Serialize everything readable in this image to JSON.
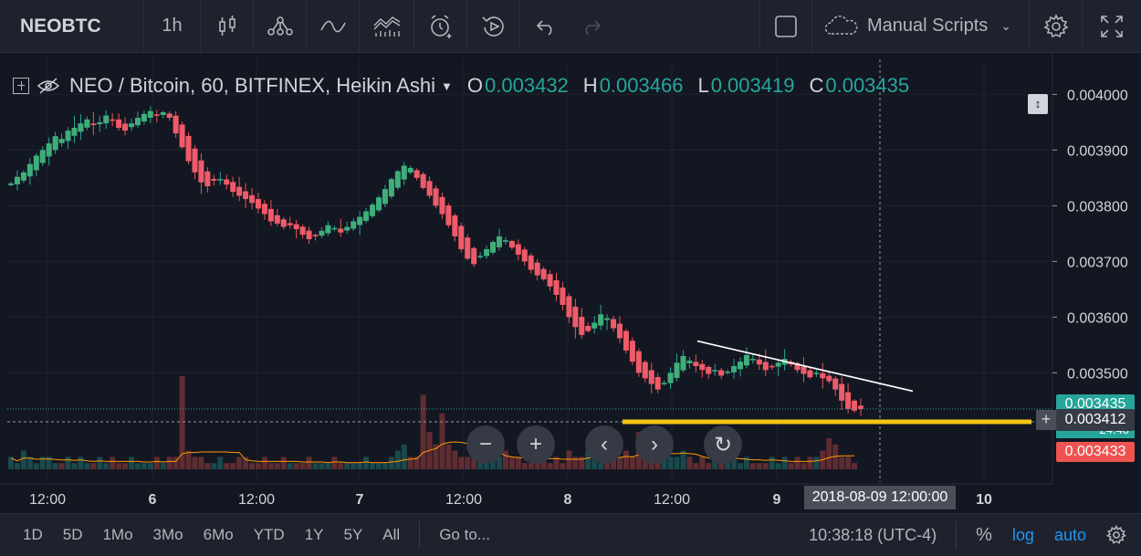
{
  "toolbar": {
    "symbol": "NEOBTC",
    "interval": "1h",
    "scripts_label": "Manual Scripts"
  },
  "legend": {
    "title": "NEO / Bitcoin, 60, BITFINEX, Heikin Ashi",
    "o_label": "O",
    "o_value": "0.003432",
    "h_label": "H",
    "h_value": "0.003466",
    "l_label": "L",
    "l_value": "0.003419",
    "c_label": "C",
    "c_value": "0.003435"
  },
  "price_badges": {
    "last": "0.003435",
    "crosshair": "0.003412",
    "volume_partial": "24.40",
    "ma": "0.003433"
  },
  "crosshair_time": "2018-08-09 12:00:00",
  "bottom": {
    "ranges": [
      "1D",
      "5D",
      "1Mo",
      "3Mo",
      "6Mo",
      "YTD",
      "1Y",
      "5Y",
      "All"
    ],
    "goto": "Go to...",
    "clock": "10:38:18 (UTC-4)",
    "percent": "%",
    "log": "log",
    "auto": "auto"
  },
  "colors": {
    "up": "#26a69a",
    "up_body": "#3fae7a",
    "down": "#ef5350",
    "down_body": "#f05b6a",
    "support_line": "#f5c518",
    "trend_line": "#ffffff",
    "ma_line": "#ff9800",
    "bg": "#131722"
  },
  "chart_data": {
    "type": "candlestick",
    "style": "Heikin Ashi",
    "ylim": [
      0.00333,
      0.00404
    ],
    "y_ticks": [
      "0.004000",
      "0.003900",
      "0.003800",
      "0.003700",
      "0.003600",
      "0.003500"
    ],
    "x_ticks": [
      "12:00",
      "6",
      "12:00",
      "7",
      "12:00",
      "8",
      "12:00",
      "9",
      "10"
    ],
    "closes": [
      0.00384,
      0.003852,
      0.00386,
      0.003875,
      0.00389,
      0.0039,
      0.003912,
      0.003925,
      0.00392,
      0.003935,
      0.00394,
      0.003948,
      0.003955,
      0.003945,
      0.00395,
      0.003962,
      0.003955,
      0.00394,
      0.003935,
      0.003948,
      0.003958,
      0.003965,
      0.00397,
      0.003962,
      0.003968,
      0.003958,
      0.00393,
      0.003905,
      0.00388,
      0.00386,
      0.003842,
      0.003835,
      0.003845,
      0.003848,
      0.003838,
      0.003825,
      0.003818,
      0.003812,
      0.003805,
      0.003795,
      0.003785,
      0.003772,
      0.003768,
      0.003762,
      0.003765,
      0.003758,
      0.003748,
      0.00374,
      0.003745,
      0.003755,
      0.003765,
      0.00376,
      0.003752,
      0.003762,
      0.003772,
      0.00378,
      0.00379,
      0.003802,
      0.003815,
      0.00383,
      0.003848,
      0.003862,
      0.003872,
      0.003868,
      0.00385,
      0.003832,
      0.003818,
      0.0038,
      0.003785,
      0.003765,
      0.003745,
      0.003722,
      0.003705,
      0.003695,
      0.00371,
      0.003722,
      0.003735,
      0.003745,
      0.003738,
      0.003725,
      0.003712,
      0.0037,
      0.003685,
      0.003675,
      0.003668,
      0.003655,
      0.00364,
      0.003622,
      0.0036,
      0.003582,
      0.003568,
      0.003575,
      0.00359,
      0.003605,
      0.003598,
      0.00358,
      0.003562,
      0.00354,
      0.00352,
      0.0035,
      0.00349,
      0.00348,
      0.00347,
      0.003482,
      0.0035,
      0.003518,
      0.00353,
      0.003522,
      0.003512,
      0.003505,
      0.003498,
      0.003505,
      0.003495,
      0.003502,
      0.003512,
      0.00352,
      0.003532,
      0.003525,
      0.003515,
      0.003505,
      0.00351,
      0.003518,
      0.003525,
      0.003515,
      0.003505,
      0.003498,
      0.003492,
      0.0035,
      0.00349,
      0.003485,
      0.00347,
      0.00345,
      0.003435,
      0.003432,
      0.003435
    ],
    "volumes": [
      2,
      1,
      3,
      2,
      1,
      2,
      2,
      1,
      1,
      2,
      1,
      2,
      1,
      1,
      2,
      1,
      2,
      1,
      1,
      2,
      1,
      1,
      1,
      2,
      1,
      2,
      2,
      15,
      3,
      2,
      2,
      1,
      1,
      2,
      1,
      1,
      2,
      2,
      1,
      1,
      2,
      1,
      1,
      2,
      1,
      1,
      1,
      2,
      1,
      1,
      1,
      2,
      1,
      1,
      1,
      1,
      2,
      1,
      1,
      1,
      2,
      3,
      4,
      2,
      2,
      12,
      6,
      4,
      9,
      4,
      3,
      2,
      2,
      3,
      2,
      1,
      2,
      2,
      3,
      2,
      2,
      1,
      1,
      2,
      3,
      1,
      2,
      1,
      3,
      2,
      2,
      3,
      2,
      1,
      3,
      2,
      2,
      3,
      2,
      6,
      4,
      2,
      2,
      3,
      2,
      2,
      3,
      2,
      1,
      2,
      1,
      2,
      3,
      2,
      2,
      1,
      2,
      1,
      1,
      1,
      2,
      1,
      2,
      1,
      2,
      1,
      2,
      2,
      3,
      5,
      4,
      2,
      2,
      1
    ],
    "annotations": {
      "trend_line": {
        "from": 0.003557,
        "to": 0.003467
      },
      "support_line": 0.003412
    }
  }
}
